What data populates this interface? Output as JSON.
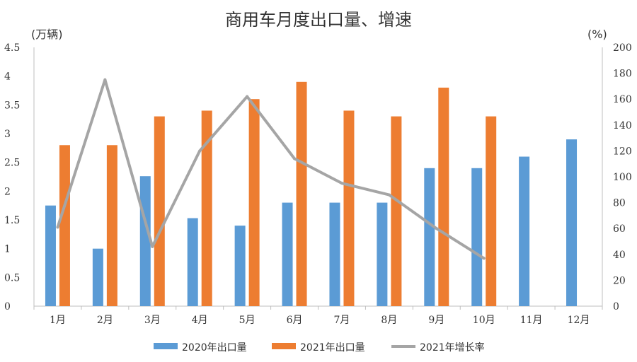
{
  "chart_data": {
    "type": "bar",
    "title": "商用车月度出口量、增速",
    "ylabel_left": "(万辆)",
    "ylabel_right": "(%)",
    "ylim_left": [
      0,
      4.5
    ],
    "ylim_right": [
      0,
      200
    ],
    "yticks_left": [
      "0",
      "0.5",
      "1",
      "1.5",
      "2",
      "2.5",
      "3",
      "3.5",
      "4",
      "4.5"
    ],
    "yticks_right": [
      "0",
      "20",
      "40",
      "60",
      "80",
      "100",
      "120",
      "140",
      "160",
      "180",
      "200"
    ],
    "categories": [
      "1月",
      "2月",
      "3月",
      "4月",
      "5月",
      "6月",
      "7月",
      "8月",
      "9月",
      "10月",
      "11月",
      "12月"
    ],
    "grid": false,
    "legend_position": "bottom",
    "series": [
      {
        "name": "2020年出口量",
        "type": "bar",
        "axis": "left",
        "color": "#5b9bd5",
        "values": [
          1.75,
          1.0,
          2.26,
          1.53,
          1.4,
          1.8,
          1.8,
          1.8,
          2.4,
          2.4,
          2.6,
          2.9
        ]
      },
      {
        "name": "2021年出口量",
        "type": "bar",
        "axis": "left",
        "color": "#ed7d31",
        "values": [
          2.8,
          2.8,
          3.3,
          3.4,
          3.6,
          3.9,
          3.4,
          3.3,
          3.8,
          3.3,
          null,
          null
        ]
      },
      {
        "name": "2021年增长率",
        "type": "line",
        "axis": "right",
        "color": "#a5a5a5",
        "values": [
          61,
          175,
          46,
          120,
          162,
          114,
          95,
          86,
          60,
          37,
          null,
          null
        ]
      }
    ]
  }
}
